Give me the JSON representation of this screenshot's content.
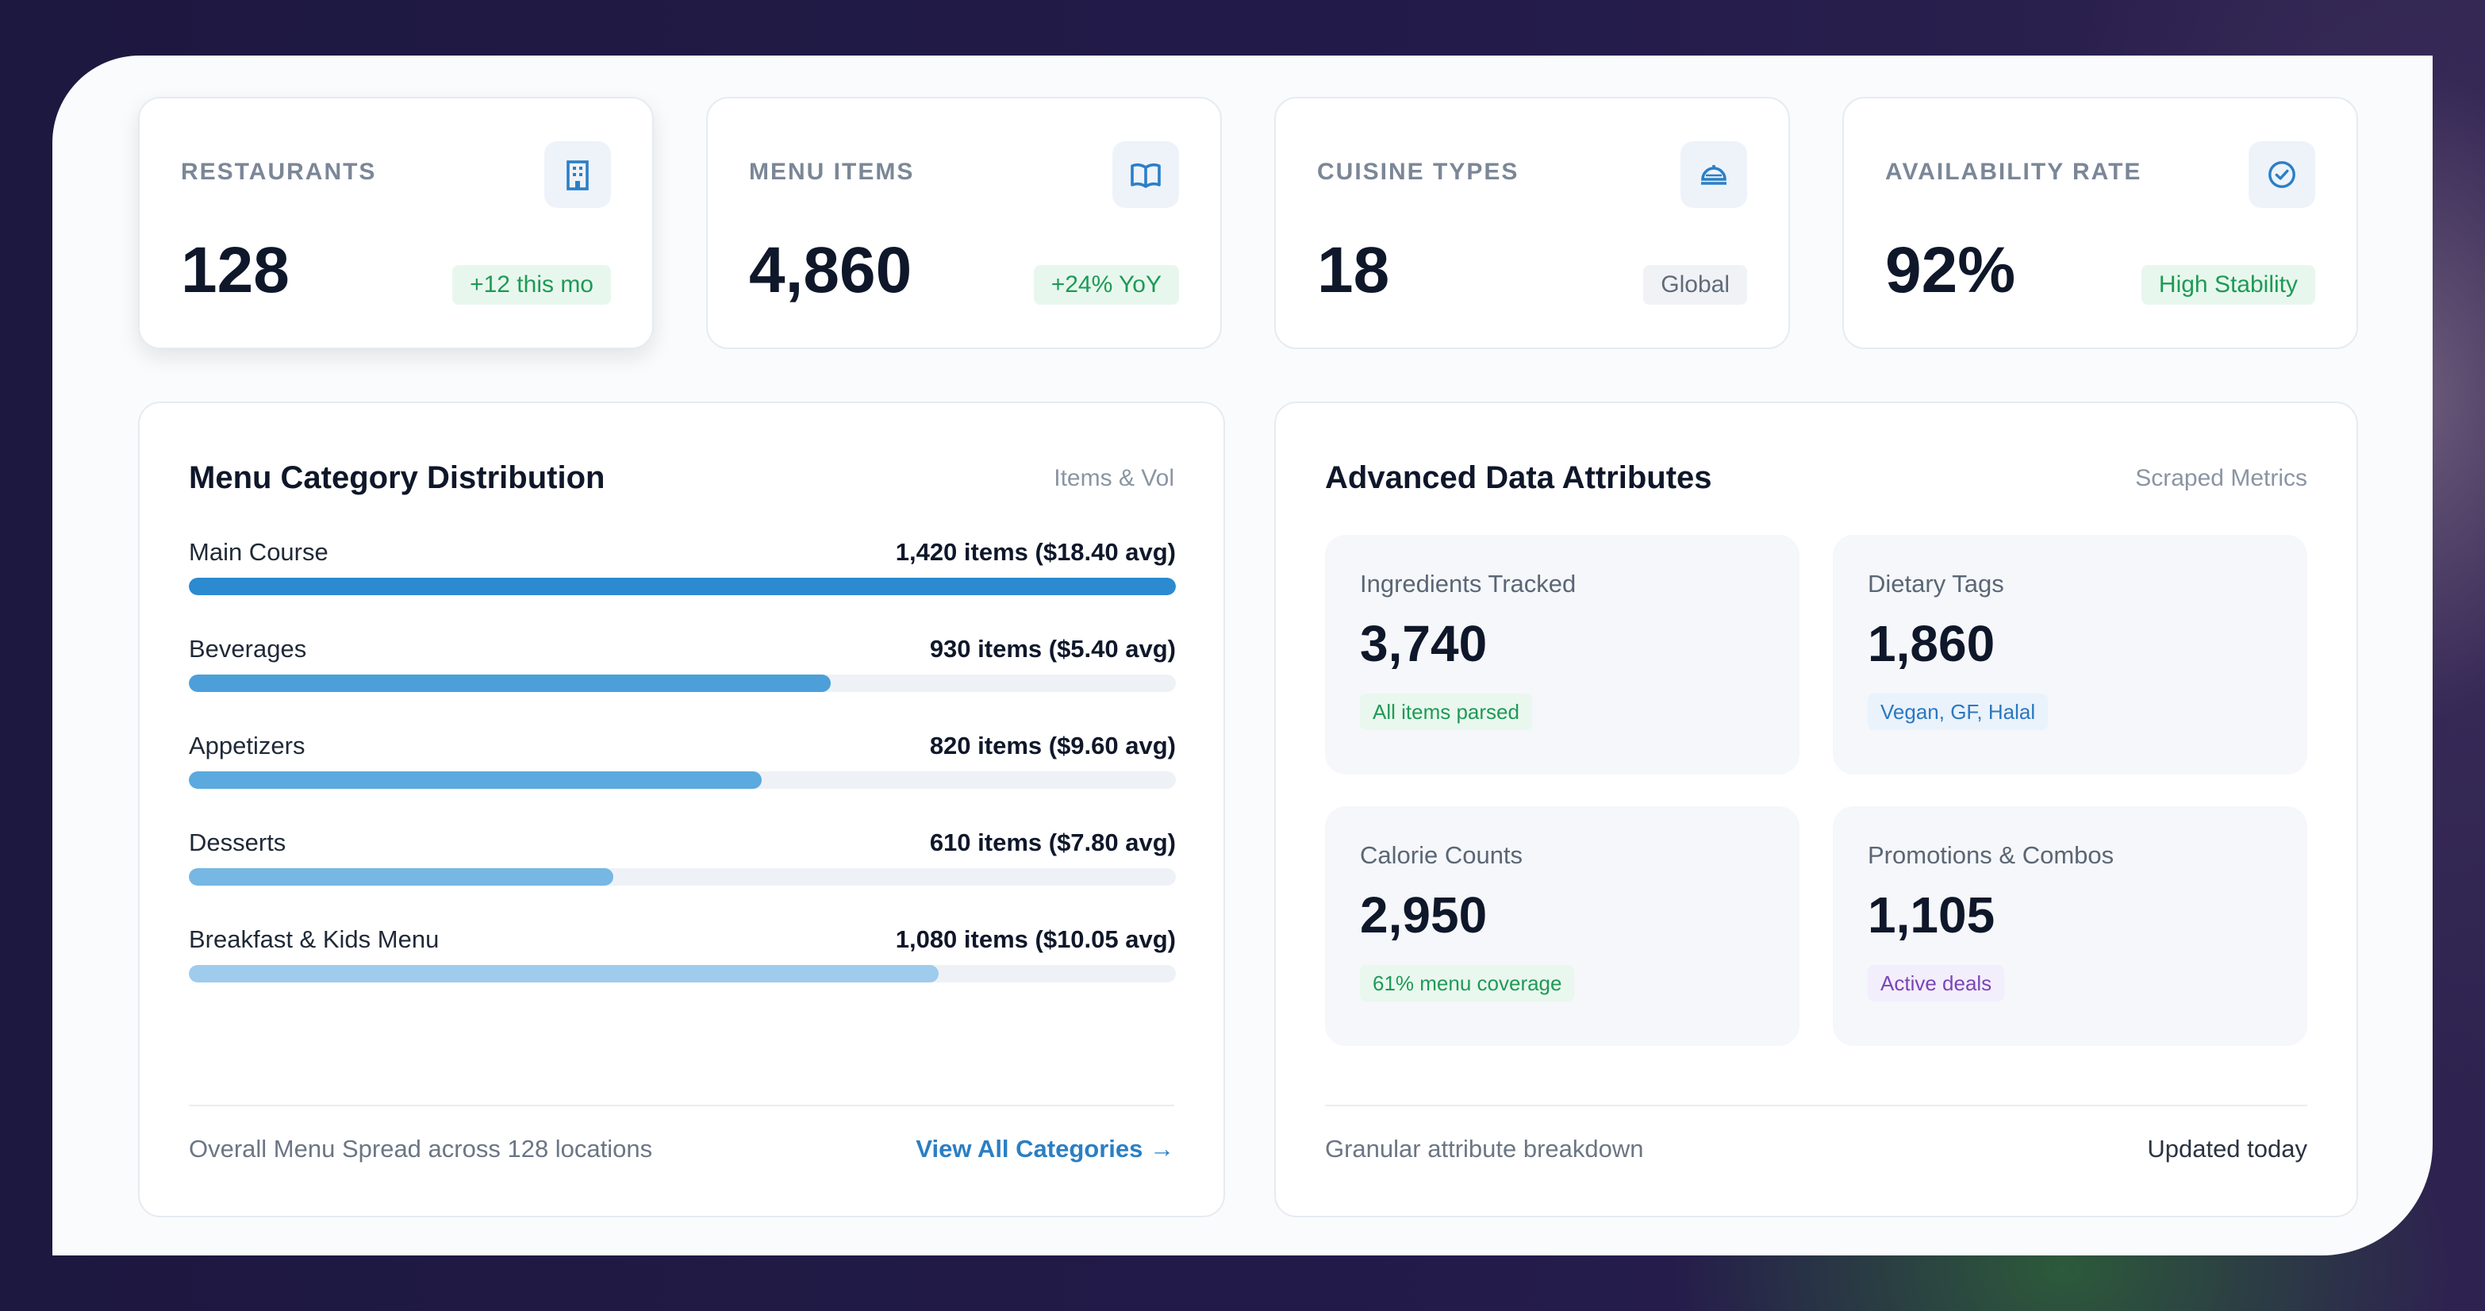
{
  "stats": [
    {
      "label": "RESTAURANTS",
      "value": "128",
      "badge": "+12 this mo",
      "icon": "building-icon"
    },
    {
      "label": "MENU ITEMS",
      "value": "4,860",
      "badge": "+24% YoY",
      "icon": "book-open-icon"
    },
    {
      "label": "CUISINE TYPES",
      "value": "18",
      "badge": "Global",
      "icon": "food-cloche-icon"
    },
    {
      "label": "AVAILABILITY RATE",
      "value": "92%",
      "badge": "High Stability",
      "icon": "check-circle-icon"
    }
  ],
  "category_panel": {
    "title": "Menu Category Distribution",
    "subtitle": "Items & Vol",
    "categories": [
      {
        "name": "Main Course",
        "value": "1,420 items ($18.40 avg)",
        "fill_pct": 100,
        "color": "#2b8ad0"
      },
      {
        "name": "Beverages",
        "value": "930 items ($5.40 avg)",
        "fill_pct": 65,
        "color": "#4c9fd9"
      },
      {
        "name": "Appetizers",
        "value": "820 items ($9.60 avg)",
        "fill_pct": 58,
        "color": "#5ba9de"
      },
      {
        "name": "Desserts",
        "value": "610 items ($7.80 avg)",
        "fill_pct": 43,
        "color": "#76b7e4"
      },
      {
        "name": "Breakfast & Kids Menu",
        "value": "1,080 items ($10.05 avg)",
        "fill_pct": 76,
        "color": "#9fcbed"
      }
    ],
    "footer_text": "Overall Menu Spread across 128 locations",
    "footer_link": "View All Categories →"
  },
  "attributes_panel": {
    "title": "Advanced Data Attributes",
    "subtitle": "Scraped Metrics",
    "attributes": [
      {
        "label": "Ingredients Tracked",
        "value": "3,740",
        "badge": "All items parsed"
      },
      {
        "label": "Dietary Tags",
        "value": "1,860",
        "badge": "Vegan, GF, Halal"
      },
      {
        "label": "Calorie Counts",
        "value": "2,950",
        "badge": "61% menu coverage"
      },
      {
        "label": "Promotions & Combos",
        "value": "1,105",
        "badge": "Active deals"
      }
    ],
    "footer_text": "Granular attribute breakdown",
    "footer_status": "Updated today"
  },
  "colors": {
    "accent_blue": "#2a7fc4",
    "positive_green": "#1e9a55",
    "purple": "#7a45b8"
  }
}
